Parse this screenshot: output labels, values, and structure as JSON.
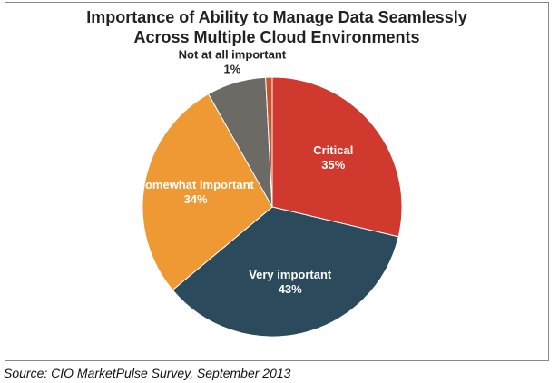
{
  "chart_data": {
    "type": "pie",
    "title": "Importance of Ability to Manage Data Seamlessly Across Multiple Cloud Environments",
    "categories": [
      "Critical",
      "Very important",
      "Somewhat important",
      null,
      "Not at all important"
    ],
    "values": [
      35,
      43,
      34,
      9,
      1
    ],
    "value_labels": [
      "35%",
      "43%",
      "34%",
      null,
      "1%"
    ],
    "colors": [
      "#d0392e",
      "#2b4a5b",
      "#ee9934",
      "#6b6a65",
      "#c9522c"
    ],
    "source": "Source: CIO MarketPulse Survey, September 2013"
  }
}
